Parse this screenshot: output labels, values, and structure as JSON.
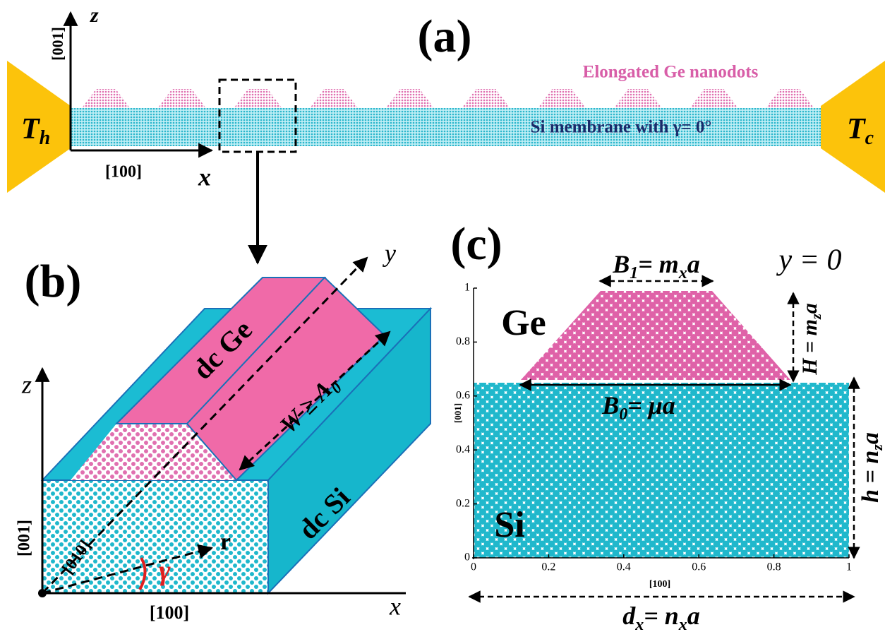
{
  "panel_a": {
    "label": "(a)",
    "axis_z": "z",
    "dir_z": "[001]",
    "dir_x": "[100]",
    "axis_x": "x",
    "hot": [
      "T",
      "h"
    ],
    "cold": [
      "T",
      "c"
    ],
    "dots_label": "Elongated Ge nanodots",
    "membrane_label": "Si membrane with γ= 0°"
  },
  "panel_b": {
    "label": "(b)",
    "axis_y": "y",
    "ge_label": "dc Ge",
    "width_label": [
      "W ≥ Λ",
      "0"
    ],
    "axis_z": "z",
    "dir_z": "[001]",
    "dir_y": "[010]",
    "vector": "r",
    "angle": "γ",
    "si_label": "dc Si",
    "dir_x": "[100]",
    "axis_x": "x"
  },
  "panel_c": {
    "label": "(c)",
    "top_width": [
      "B",
      "1",
      "= m",
      "x",
      "a"
    ],
    "plane": "y = 0",
    "ge": "Ge",
    "si": "Si",
    "ge_height": [
      "H = m",
      "z",
      "a"
    ],
    "base_width": [
      "B",
      "0",
      "= μa"
    ],
    "si_height": [
      "h = n",
      "z",
      "a"
    ],
    "period": [
      "d",
      "x",
      "= n",
      "x",
      "a"
    ],
    "xticks": [
      0,
      0.2,
      0.4,
      0.6,
      0.8,
      1
    ],
    "yticks": [
      0,
      0.2,
      0.4,
      0.6,
      0.8,
      1
    ],
    "xlabel": "[100]",
    "ylabel": "[001]"
  }
}
